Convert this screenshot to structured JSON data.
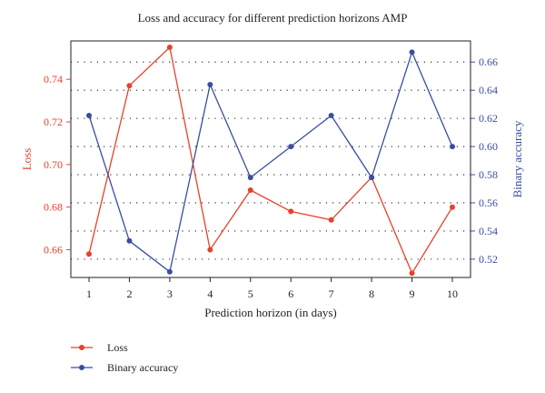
{
  "chart_data": {
    "type": "line",
    "title": "Loss and accuracy for different prediction horizons AMP",
    "xlabel": "Prediction horizon (in days)",
    "ylabel_left": "Loss",
    "ylabel_right": "Binary accuracy",
    "x": [
      1,
      2,
      3,
      4,
      5,
      6,
      7,
      8,
      9,
      10
    ],
    "x_ticks": [
      "1",
      "2",
      "3",
      "4",
      "5",
      "6",
      "7",
      "8",
      "9",
      "10"
    ],
    "y_left_ticks": [
      "0.66",
      "0.68",
      "0.70",
      "0.72",
      "0.74"
    ],
    "y_left_range": [
      0.647,
      0.758
    ],
    "y_right_ticks": [
      "0.52",
      "0.54",
      "0.56",
      "0.58",
      "0.60",
      "0.62",
      "0.64",
      "0.66"
    ],
    "y_right_range": [
      0.507,
      0.675
    ],
    "grid": "horizontal dotted",
    "legend_position": "below",
    "series": [
      {
        "name": "Loss",
        "axis": "left",
        "color": "#e8412a",
        "values": [
          0.658,
          0.737,
          0.755,
          0.66,
          0.688,
          0.678,
          0.674,
          0.694,
          0.649,
          0.68
        ]
      },
      {
        "name": "Binary accuracy",
        "axis": "right",
        "color": "#3a4ea0",
        "values": [
          0.622,
          0.533,
          0.511,
          0.644,
          0.578,
          0.6,
          0.622,
          0.578,
          0.667,
          0.6
        ]
      }
    ],
    "axis_colors": {
      "left": "#e8412a",
      "right": "#3a4ea0",
      "x": "#222222"
    }
  }
}
